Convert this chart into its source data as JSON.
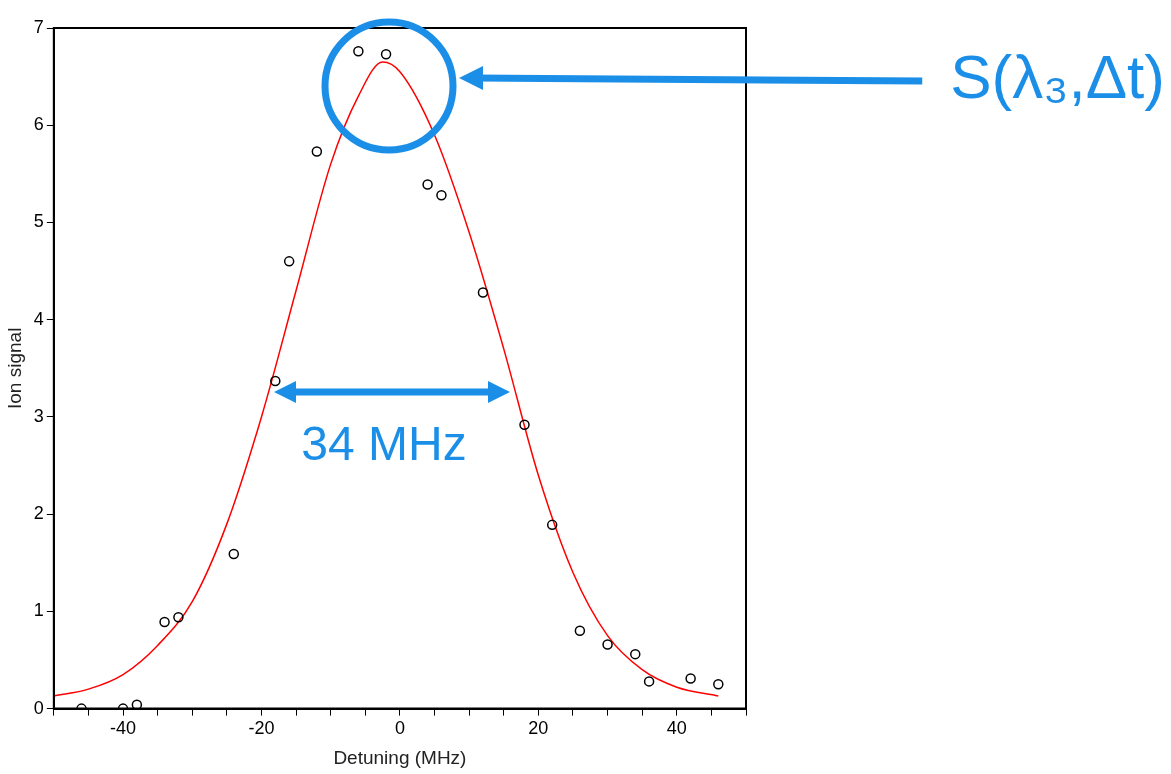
{
  "chart_data": {
    "type": "scatter",
    "xlabel": "Detuning (MHz)",
    "ylabel": "Ion signal",
    "xlim": [
      -50,
      50
    ],
    "xticks": [
      {
        "value": -50,
        "label": null
      },
      {
        "value": -45,
        "label": null
      },
      -40,
      {
        "value": -35,
        "label": null
      },
      {
        "value": -30,
        "label": null
      },
      {
        "value": -25,
        "label": null
      },
      -20,
      {
        "value": -15,
        "label": null
      },
      {
        "value": -10,
        "label": null
      },
      {
        "value": -5,
        "label": null
      },
      0,
      {
        "value": 5,
        "label": null
      },
      {
        "value": 10,
        "label": null
      },
      {
        "value": 15,
        "label": null
      },
      20,
      {
        "value": 25,
        "label": null
      },
      {
        "value": 30,
        "label": null
      },
      {
        "value": 35,
        "label": null
      },
      40,
      {
        "value": 45,
        "label": null
      },
      {
        "value": 50,
        "label": null
      }
    ],
    "ylim": [
      0,
      7
    ],
    "yticks": [
      0,
      1,
      2,
      3,
      4,
      5,
      6,
      7
    ],
    "grid": false,
    "legend": false,
    "series": [
      {
        "type": "scatter",
        "color": "#000000",
        "marker": "circle",
        "x": [
          -46,
          -40,
          -38,
          -34,
          -32,
          -24,
          -18,
          -16,
          -12,
          -6,
          -2,
          4,
          6,
          12,
          18,
          22,
          26,
          30,
          34,
          36,
          42,
          46
        ],
        "values": [
          0,
          0,
          0.04,
          0.89,
          0.94,
          1.59,
          3.37,
          4.6,
          5.73,
          6.76,
          6.73,
          5.39,
          5.28,
          4.28,
          2.92,
          1.89,
          0.8,
          0.66,
          0.56,
          0.28,
          0.31,
          0.25
        ]
      },
      {
        "type": "line",
        "color": "#ff0000",
        "marker": "none",
        "line_style": "solid",
        "x": [
          -50,
          -45,
          -40,
          -35,
          -30,
          -25,
          -20,
          -15,
          -10,
          -6,
          -2.5,
          0,
          5,
          10,
          15,
          20,
          25,
          30,
          35,
          40,
          46
        ],
        "values": [
          0.13,
          0.2,
          0.35,
          0.65,
          1.1,
          1.9,
          3.0,
          4.3,
          5.6,
          6.3,
          6.65,
          6.55,
          5.9,
          4.9,
          3.7,
          2.4,
          1.4,
          0.75,
          0.4,
          0.22,
          0.13
        ]
      }
    ],
    "annotations": [
      "S(λ₃,Δt)",
      "34 MHz"
    ]
  }
}
